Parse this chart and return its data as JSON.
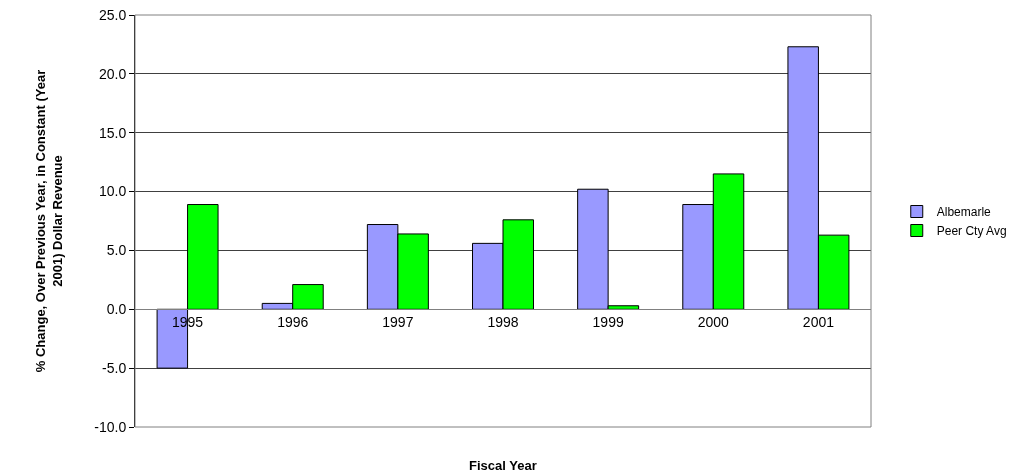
{
  "chart_data": {
    "type": "bar",
    "xlabel": "Fiscal Year",
    "ylabel": "% Change, Over Previous Year, in Constant (Year 2001) Dollar Revenue",
    "categories": [
      "1995",
      "1996",
      "1997",
      "1998",
      "1999",
      "2000",
      "2001"
    ],
    "series": [
      {
        "name": "Albemarle",
        "color": "#9999ff",
        "values": [
          -5.0,
          0.5,
          7.2,
          5.6,
          10.2,
          8.9,
          22.3
        ]
      },
      {
        "name": "Peer Cty Avg",
        "color": "#00ff00",
        "values": [
          8.9,
          2.1,
          6.4,
          7.6,
          0.3,
          11.5,
          6.3
        ]
      }
    ],
    "ylim": [
      -10,
      25
    ],
    "yticks": [
      {
        "value": -10,
        "label": "-10.0"
      },
      {
        "value": -5,
        "label": "-5.0"
      },
      {
        "value": 0,
        "label": "0.0"
      },
      {
        "value": 5,
        "label": "5.0"
      },
      {
        "value": 10,
        "label": "10.0"
      },
      {
        "value": 15,
        "label": "15.0"
      },
      {
        "value": 20,
        "label": "20.0"
      },
      {
        "value": 25,
        "label": "25.0"
      }
    ],
    "grid": "y",
    "legend": "right"
  }
}
